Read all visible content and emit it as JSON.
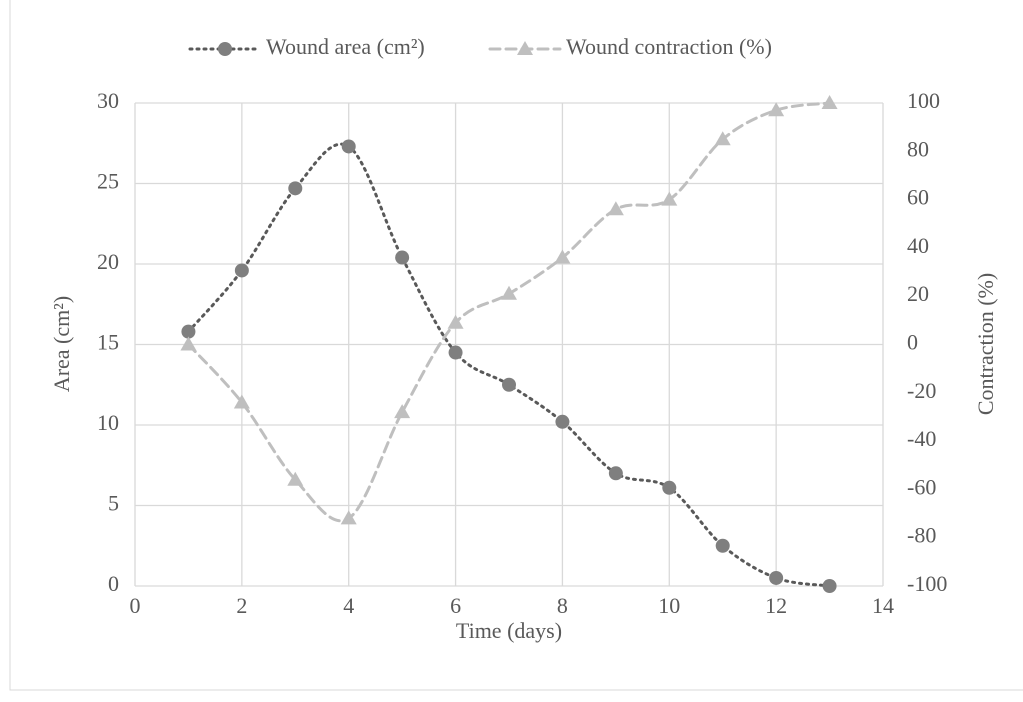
{
  "chart_data": {
    "type": "line",
    "x": [
      1,
      2,
      3,
      4,
      5,
      6,
      7,
      8,
      9,
      10,
      11,
      12,
      13
    ],
    "series": [
      {
        "name": "Wound area (cm²)",
        "color": "#7f7f7f",
        "marker": "circle",
        "line_style": "dotted",
        "values": [
          15.8,
          19.6,
          24.7,
          27.3,
          20.4,
          14.5,
          12.5,
          10.2,
          7.0,
          6.1,
          2.5,
          0.5,
          0
        ]
      },
      {
        "name": "Wound contraction (%)",
        "color": "#bfbfbf",
        "marker": "triangle",
        "line_style": "dashed",
        "axis": "y2",
        "values": [
          0,
          -24,
          -56,
          -72,
          -28,
          9,
          21,
          36,
          56,
          60,
          85,
          97,
          100
        ]
      }
    ],
    "x_label": "Time (days)",
    "y_label": "Area (cm²)",
    "y2_label": "Contraction (%)",
    "xlim": [
      0,
      14
    ],
    "xticks": [
      0,
      2,
      4,
      6,
      8,
      10,
      12,
      14
    ],
    "ylim": [
      0,
      30
    ],
    "yticks": [
      0,
      5,
      10,
      15,
      20,
      25,
      30
    ],
    "y2lim": [
      -100,
      100
    ],
    "y2ticks": [
      -100,
      -80,
      -60,
      -40,
      -20,
      0,
      20,
      40,
      60,
      80,
      100
    ],
    "grid": true,
    "smooth": true,
    "legend": "top"
  }
}
